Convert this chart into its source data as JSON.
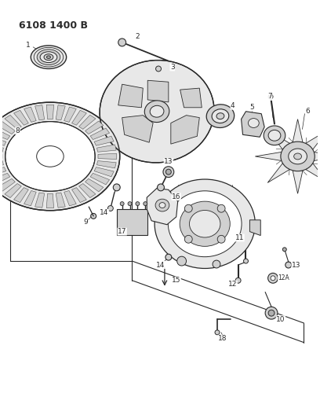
{
  "title": "6108 1400 B",
  "bg_color": "#ffffff",
  "fig_width": 4.08,
  "fig_height": 5.33,
  "dpi": 100,
  "line_color": "#2a2a2a",
  "fill_light": "#e8e8e8",
  "fill_mid": "#d0d0d0",
  "fill_dark": "#b0b0b0"
}
